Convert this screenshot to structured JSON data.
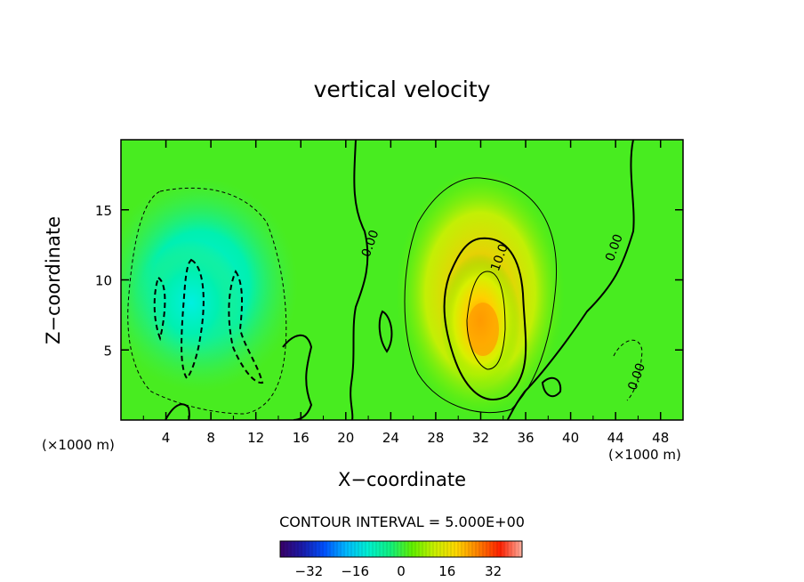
{
  "chart_data": {
    "type": "heatmap",
    "title": "vertical velocity",
    "xlabel": "X−coordinate",
    "ylabel": "Z−coordinate",
    "x_unit_left": "(×1000 m)",
    "x_unit_right": "(×1000 m)",
    "x_ticks": [
      4,
      8,
      12,
      16,
      20,
      24,
      28,
      32,
      36,
      40,
      44,
      48
    ],
    "y_ticks": [
      5,
      10,
      15
    ],
    "xlim": [
      0,
      50
    ],
    "ylim": [
      0,
      20
    ],
    "contour_interval_text": "CONTOUR INTERVAL = 5.000E+00",
    "contour_labels": [
      {
        "text": "0.00",
        "x": 22.5,
        "y": 12.5
      },
      {
        "text": "10.0",
        "x": 34,
        "y": 11.5
      },
      {
        "text": "0.00",
        "x": 44.2,
        "y": 12.2
      },
      {
        "text": "0.00",
        "x": 46.2,
        "y": 3.0
      }
    ],
    "colorbar": {
      "ticks": [
        -32,
        -16,
        0,
        16,
        32
      ],
      "tick_labels": [
        "−32",
        "−16",
        "0",
        "16",
        "32"
      ],
      "range": [
        -42,
        42
      ],
      "colors": [
        "#3a0066",
        "#1a1aa8",
        "#0050ff",
        "#00b8ff",
        "#00f0d0",
        "#10f080",
        "#60f000",
        "#c8f000",
        "#ffd800",
        "#ff8000",
        "#ff2000",
        "#ffb0a0"
      ]
    },
    "field_features": [
      {
        "kind": "updraft",
        "x": 32,
        "z": 6.5,
        "value": 30
      },
      {
        "kind": "downdraft",
        "x": 7,
        "z": 9,
        "value": -12
      }
    ]
  }
}
